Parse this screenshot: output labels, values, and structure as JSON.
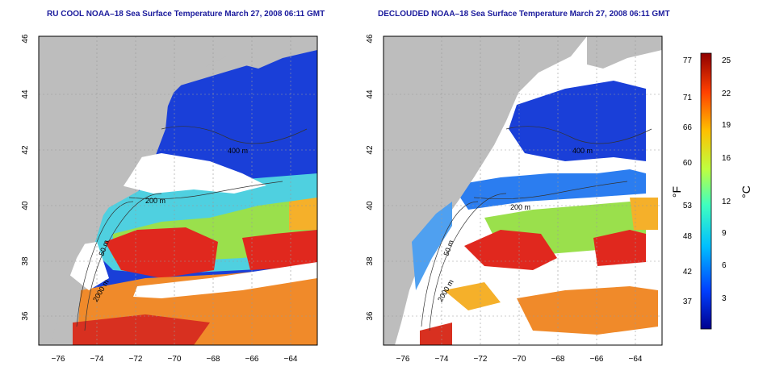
{
  "left_panel": {
    "title": "RU COOL NOAA–18 Sea Surface Temperature March 27, 2008 06:11 GMT"
  },
  "right_panel": {
    "title": "DECLOUDED NOAA–18 Sea Surface Temperature March 27, 2008 06:11 GMT"
  },
  "map_axes": {
    "longitude_ticks": [
      "−76",
      "−74",
      "−72",
      "−70",
      "−68",
      "−66",
      "−64"
    ],
    "latitude_ticks": [
      "46",
      "44",
      "42",
      "40",
      "38",
      "36"
    ],
    "contour_labels": [
      "400 m",
      "200 m",
      "50 m",
      "2000 m"
    ]
  },
  "colorbar": {
    "fahrenheit_ticks": [
      "77",
      "71",
      "66",
      "60",
      "53",
      "48",
      "42",
      "37"
    ],
    "celsius_ticks": [
      "25",
      "22",
      "19",
      "16",
      "12",
      "9",
      "6",
      "3"
    ],
    "fahrenheit_unit": "°F",
    "celsius_unit": "°C",
    "colors": [
      "#00008f",
      "#0040ff",
      "#00bfff",
      "#40ffbf",
      "#bfff40",
      "#ffbf00",
      "#ff4000",
      "#8f0000"
    ]
  }
}
